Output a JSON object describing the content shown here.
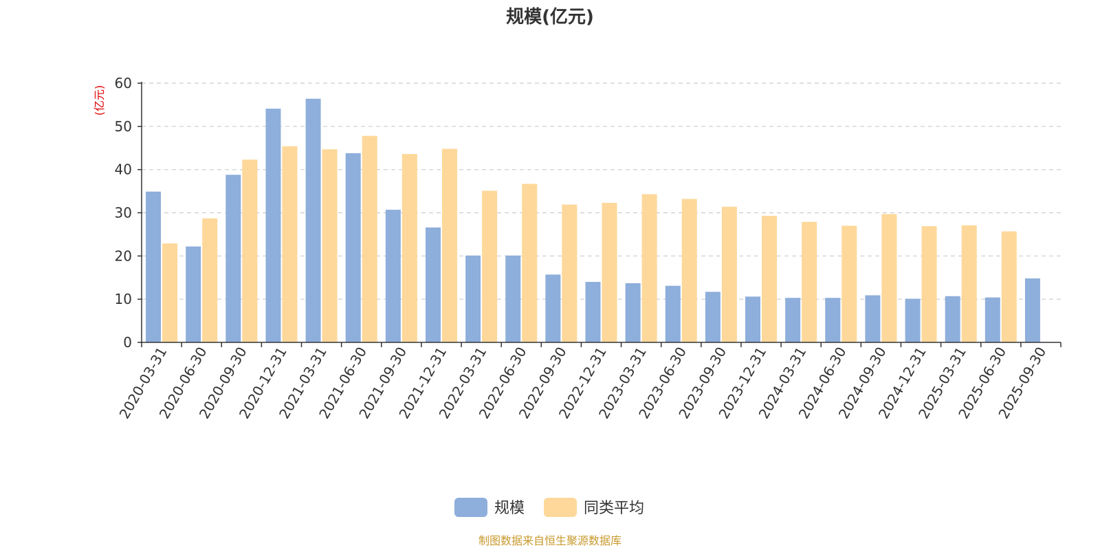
{
  "chart_data": {
    "type": "bar",
    "title": "规模(亿元)",
    "ylabel": "(亿元)",
    "xlabel": "",
    "ylim": [
      0,
      60
    ],
    "yticks": [
      0,
      10,
      20,
      30,
      40,
      50,
      60
    ],
    "grid": true,
    "legend_position": "bottom-center",
    "categories": [
      "2020-03-31",
      "2020-06-30",
      "2020-09-30",
      "2020-12-31",
      "2021-03-31",
      "2021-06-30",
      "2021-09-30",
      "2021-12-31",
      "2022-03-31",
      "2022-06-30",
      "2022-09-30",
      "2022-12-31",
      "2023-03-31",
      "2023-06-30",
      "2023-09-30",
      "2023-12-31",
      "2024-03-31",
      "2024-06-30",
      "2024-09-30",
      "2024-12-31",
      "2025-03-31",
      "2025-06-30",
      "2025-09-30"
    ],
    "series": [
      {
        "name": "规模",
        "color": "#8eaedb",
        "values": [
          34.9,
          22.2,
          38.8,
          54.1,
          56.4,
          43.8,
          30.7,
          26.6,
          20.1,
          20.1,
          15.7,
          14.0,
          13.7,
          13.1,
          11.7,
          10.6,
          10.3,
          10.3,
          10.9,
          10.1,
          10.7,
          10.4,
          14.8
        ]
      },
      {
        "name": "同类平均",
        "color": "#fdd89a",
        "values": [
          22.9,
          28.7,
          42.3,
          45.4,
          44.7,
          47.8,
          43.6,
          44.8,
          35.1,
          36.7,
          31.9,
          32.3,
          34.3,
          33.2,
          31.4,
          29.3,
          27.9,
          27.0,
          29.7,
          26.9,
          27.1,
          25.7,
          null
        ]
      }
    ],
    "source": "制图数据来自恒生聚源数据库"
  }
}
